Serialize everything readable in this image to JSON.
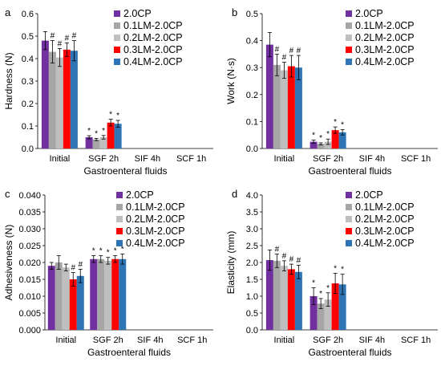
{
  "colors": {
    "2.0CP": "#7030a0",
    "0.1LM-2.0CP": "#a6a6a6",
    "0.2LM-2.0CP": "#bfbfbf",
    "0.3LM-2.0CP": "#ff0000",
    "0.4LM-2.0CP": "#2e75b6"
  },
  "chart_data": [
    {
      "type": "bar",
      "panel_label": "a",
      "xlabel": "Gastroenteral fluids",
      "ylabel": "Hardness (N)",
      "ylim": [
        0,
        0.6
      ],
      "yticks": [
        "0.0",
        "0.1",
        "0.2",
        "0.3",
        "0.4",
        "0.5",
        "0.6"
      ],
      "categories": [
        "Initial",
        "SGF 2h",
        "SIF 4h",
        "SCF 1h"
      ],
      "legend": "top-right",
      "series": [
        {
          "name": "2.0CP",
          "values": [
            0.48,
            0.05,
            null,
            null
          ],
          "errors": [
            0.04,
            0.007,
            null,
            null
          ],
          "marks": [
            "",
            "*",
            "",
            ""
          ]
        },
        {
          "name": "0.1LM-2.0CP",
          "values": [
            0.43,
            0.04,
            null,
            null
          ],
          "errors": [
            0.05,
            0.005,
            null,
            null
          ],
          "marks": [
            "#",
            "*",
            "",
            ""
          ]
        },
        {
          "name": "0.2LM-2.0CP",
          "values": [
            0.405,
            0.05,
            null,
            null
          ],
          "errors": [
            0.04,
            0.008,
            null,
            null
          ],
          "marks": [
            "#",
            "*",
            "",
            ""
          ]
        },
        {
          "name": "0.3LM-2.0CP",
          "values": [
            0.44,
            0.115,
            null,
            null
          ],
          "errors": [
            0.03,
            0.015,
            null,
            null
          ],
          "marks": [
            "#",
            "*",
            "",
            ""
          ]
        },
        {
          "name": "0.4LM-2.0CP",
          "values": [
            0.435,
            0.11,
            null,
            null
          ],
          "errors": [
            0.045,
            0.015,
            null,
            null
          ],
          "marks": [
            "#",
            "*",
            "",
            ""
          ]
        }
      ]
    },
    {
      "type": "bar",
      "panel_label": "b",
      "xlabel": "Gastroenteral fluids",
      "ylabel": "Work (N·s)",
      "ylim": [
        0,
        0.5
      ],
      "yticks": [
        "0.0",
        "0.1",
        "0.2",
        "0.3",
        "0.4",
        "0.5"
      ],
      "categories": [
        "Initial",
        "SGF 2h",
        "SIF 4h",
        "SCF 1h"
      ],
      "legend": "top-right",
      "series": [
        {
          "name": "2.0CP",
          "values": [
            0.385,
            0.025,
            null,
            null
          ],
          "errors": [
            0.045,
            0.006,
            null,
            null
          ],
          "marks": [
            "",
            "*",
            "",
            ""
          ]
        },
        {
          "name": "0.1LM-2.0CP",
          "values": [
            0.31,
            0.017,
            null,
            null
          ],
          "errors": [
            0.04,
            0.004,
            null,
            null
          ],
          "marks": [
            "#",
            "*",
            "",
            ""
          ]
        },
        {
          "name": "0.2LM-2.0CP",
          "values": [
            0.29,
            0.025,
            null,
            null
          ],
          "errors": [
            0.03,
            0.01,
            null,
            null
          ],
          "marks": [
            "#",
            "*",
            "",
            ""
          ]
        },
        {
          "name": "0.3LM-2.0CP",
          "values": [
            0.305,
            0.068,
            null,
            null
          ],
          "errors": [
            0.04,
            0.012,
            null,
            null
          ],
          "marks": [
            "#",
            "*",
            "",
            ""
          ]
        },
        {
          "name": "0.4LM-2.0CP",
          "values": [
            0.3,
            0.06,
            null,
            null
          ],
          "errors": [
            0.045,
            0.01,
            null,
            null
          ],
          "marks": [
            "#",
            "*",
            "",
            ""
          ]
        }
      ]
    },
    {
      "type": "bar",
      "panel_label": "c",
      "xlabel": "Gastroenteral fluids",
      "ylabel": "Adhesiveness (N)",
      "ylim": [
        0,
        0.04
      ],
      "yticks": [
        "0.000",
        "0.005",
        "0.010",
        "0.015",
        "0.020",
        "0.025",
        "0.030",
        "0.035",
        "0.040"
      ],
      "categories": [
        "Initial",
        "SGF 2h",
        "SIF 4h",
        "SCF 1h"
      ],
      "legend": "top-right",
      "series": [
        {
          "name": "2.0CP",
          "values": [
            0.019,
            0.021,
            null,
            null
          ],
          "errors": [
            0.001,
            0.001,
            null,
            null
          ],
          "marks": [
            "",
            "*",
            "",
            ""
          ]
        },
        {
          "name": "0.1LM-2.0CP",
          "values": [
            0.02,
            0.021,
            null,
            null
          ],
          "errors": [
            0.002,
            0.001,
            null,
            null
          ],
          "marks": [
            "",
            "*",
            "",
            ""
          ]
        },
        {
          "name": "0.2LM-2.0CP",
          "values": [
            0.0185,
            0.0205,
            null,
            null
          ],
          "errors": [
            0.001,
            0.001,
            null,
            null
          ],
          "marks": [
            "",
            "*",
            "",
            ""
          ]
        },
        {
          "name": "0.3LM-2.0CP",
          "values": [
            0.015,
            0.021,
            null,
            null
          ],
          "errors": [
            0.002,
            0.001,
            null,
            null
          ],
          "marks": [
            "#",
            "*",
            "",
            ""
          ]
        },
        {
          "name": "0.4LM-2.0CP",
          "values": [
            0.016,
            0.021,
            null,
            null
          ],
          "errors": [
            0.002,
            0.0015,
            null,
            null
          ],
          "marks": [
            "#",
            "*",
            "",
            ""
          ]
        }
      ]
    },
    {
      "type": "bar",
      "panel_label": "d",
      "xlabel": "Gastroenteral fluids",
      "ylabel": "Elasticity (mm)",
      "ylim": [
        0,
        4.0
      ],
      "yticks": [
        "0.0",
        "0.5",
        "1.0",
        "1.5",
        "2.0",
        "2.5",
        "3.0",
        "3.5",
        "4.0"
      ],
      "categories": [
        "Initial",
        "SGF 2h",
        "SIF 4h",
        "SCF 1h"
      ],
      "legend": "top-right",
      "series": [
        {
          "name": "2.0CP",
          "values": [
            2.07,
            1.0,
            null,
            null
          ],
          "errors": [
            0.3,
            0.25,
            null,
            null
          ],
          "marks": [
            "",
            "*",
            "",
            ""
          ]
        },
        {
          "name": "0.1LM-2.0CP",
          "values": [
            2.05,
            0.78,
            null,
            null
          ],
          "errors": [
            0.2,
            0.15,
            null,
            null
          ],
          "marks": [
            "#",
            "*",
            "",
            ""
          ]
        },
        {
          "name": "0.2LM-2.0CP",
          "values": [
            1.9,
            0.9,
            null,
            null
          ],
          "errors": [
            0.15,
            0.2,
            null,
            null
          ],
          "marks": [
            "#",
            "*",
            "",
            ""
          ]
        },
        {
          "name": "0.3LM-2.0CP",
          "values": [
            1.8,
            1.38,
            null,
            null
          ],
          "errors": [
            0.15,
            0.3,
            null,
            null
          ],
          "marks": [
            "#",
            "*",
            "",
            ""
          ]
        },
        {
          "name": "0.4LM-2.0CP",
          "values": [
            1.72,
            1.35,
            null,
            null
          ],
          "errors": [
            0.2,
            0.3,
            null,
            null
          ],
          "marks": [
            "#",
            "*",
            "",
            ""
          ]
        }
      ]
    }
  ]
}
